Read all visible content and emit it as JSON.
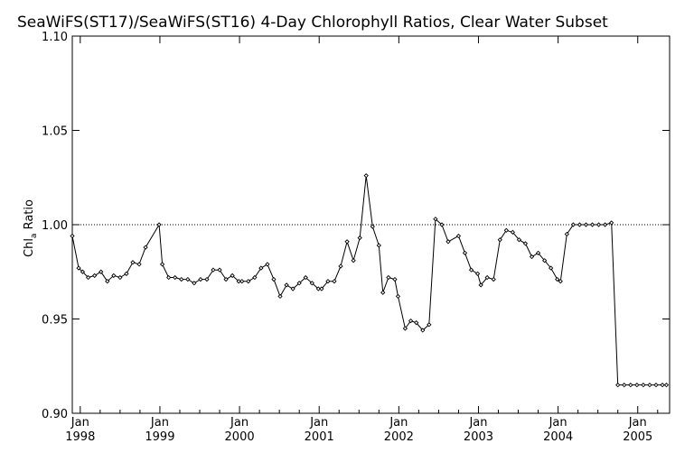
{
  "chart_data": {
    "type": "line",
    "title": "SeaWiFS(ST17)/SeaWiFS(ST16) 4-Day Chlorophyll Ratios, Clear Water Subset",
    "xlabel": "",
    "ylabel_main": "Chl",
    "ylabel_sub": "a",
    "ylabel_rest": " Ratio",
    "ylim": [
      0.9,
      1.1
    ],
    "xlim": [
      1997.9,
      2005.4
    ],
    "y_ticks": [
      {
        "v": 0.9,
        "label": "0.90"
      },
      {
        "v": 0.95,
        "label": "0.95"
      },
      {
        "v": 1.0,
        "label": "1.00"
      },
      {
        "v": 1.05,
        "label": "1.05"
      },
      {
        "v": 1.1,
        "label": "1.10"
      }
    ],
    "x_ticks": [
      {
        "v": 1998.0,
        "month": "Jan",
        "year": "1998"
      },
      {
        "v": 1999.0,
        "month": "Jan",
        "year": "1999"
      },
      {
        "v": 2000.0,
        "month": "Jan",
        "year": "2000"
      },
      {
        "v": 2001.0,
        "month": "Jan",
        "year": "2001"
      },
      {
        "v": 2002.0,
        "month": "Jan",
        "year": "2002"
      },
      {
        "v": 2003.0,
        "month": "Jan",
        "year": "2003"
      },
      {
        "v": 2004.0,
        "month": "Jan",
        "year": "2004"
      },
      {
        "v": 2005.0,
        "month": "Jan",
        "year": "2005"
      }
    ],
    "reference_line": 1.0,
    "grid": false,
    "series": [
      {
        "x": [
          1997.9,
          1997.98,
          1998.03,
          1998.1,
          1998.18,
          1998.26,
          1998.34,
          1998.42,
          1998.5,
          1998.58,
          1998.66,
          1998.74,
          1998.82,
          1998.99,
          1999.03,
          1999.11,
          1999.19,
          1999.27,
          1999.35,
          1999.43,
          1999.51,
          1999.59,
          1999.67,
          1999.75,
          1999.83,
          1999.91,
          1999.99,
          2000.03,
          2000.11,
          2000.19,
          2000.27,
          2000.35,
          2000.43,
          2000.51,
          2000.59,
          2000.67,
          2000.75,
          2000.83,
          2000.91,
          2000.99,
          2001.03,
          2001.11,
          2001.19,
          2001.27,
          2001.35,
          2001.43,
          2001.51,
          2001.59,
          2001.67,
          2001.75,
          2001.8,
          2001.87,
          2001.95,
          2001.99,
          2002.08,
          2002.15,
          2002.22,
          2002.3,
          2002.38,
          2002.46,
          2002.54,
          2002.62,
          2002.75,
          2002.83,
          2002.91,
          2002.99,
          2003.03,
          2003.11,
          2003.19,
          2003.27,
          2003.35,
          2003.43,
          2003.51,
          2003.59,
          2003.67,
          2003.75,
          2003.83,
          2003.91,
          2003.99,
          2004.03,
          2004.11,
          2004.19,
          2004.27,
          2004.35,
          2004.43,
          2004.51,
          2004.59,
          2004.67,
          2004.75,
          2004.83,
          2004.91,
          2004.99,
          2005.07,
          2005.15,
          2005.23,
          2005.31,
          2005.36
        ],
        "values": [
          0.994,
          0.977,
          0.975,
          0.972,
          0.973,
          0.975,
          0.97,
          0.973,
          0.972,
          0.974,
          0.98,
          0.979,
          0.988,
          1.0,
          0.979,
          0.972,
          0.972,
          0.971,
          0.971,
          0.969,
          0.971,
          0.971,
          0.976,
          0.976,
          0.971,
          0.973,
          0.97,
          0.97,
          0.97,
          0.972,
          0.977,
          0.979,
          0.971,
          0.962,
          0.968,
          0.966,
          0.969,
          0.972,
          0.969,
          0.966,
          0.966,
          0.97,
          0.97,
          0.978,
          0.991,
          0.981,
          0.993,
          1.026,
          0.999,
          0.989,
          0.964,
          0.972,
          0.971,
          0.962,
          0.945,
          0.949,
          0.948,
          0.944,
          0.947,
          1.003,
          1.0,
          0.991,
          0.994,
          0.985,
          0.976,
          0.974,
          0.968,
          0.972,
          0.971,
          0.992,
          0.997,
          0.996,
          0.992,
          0.99,
          0.983,
          0.985,
          0.981,
          0.977,
          0.971,
          0.97,
          0.995,
          1.0,
          1.0,
          1.0,
          1.0,
          1.0,
          1.0,
          1.001,
          0.915,
          0.915,
          0.915,
          0.915,
          0.915,
          0.915,
          0.915,
          0.915,
          0.915
        ]
      }
    ]
  }
}
